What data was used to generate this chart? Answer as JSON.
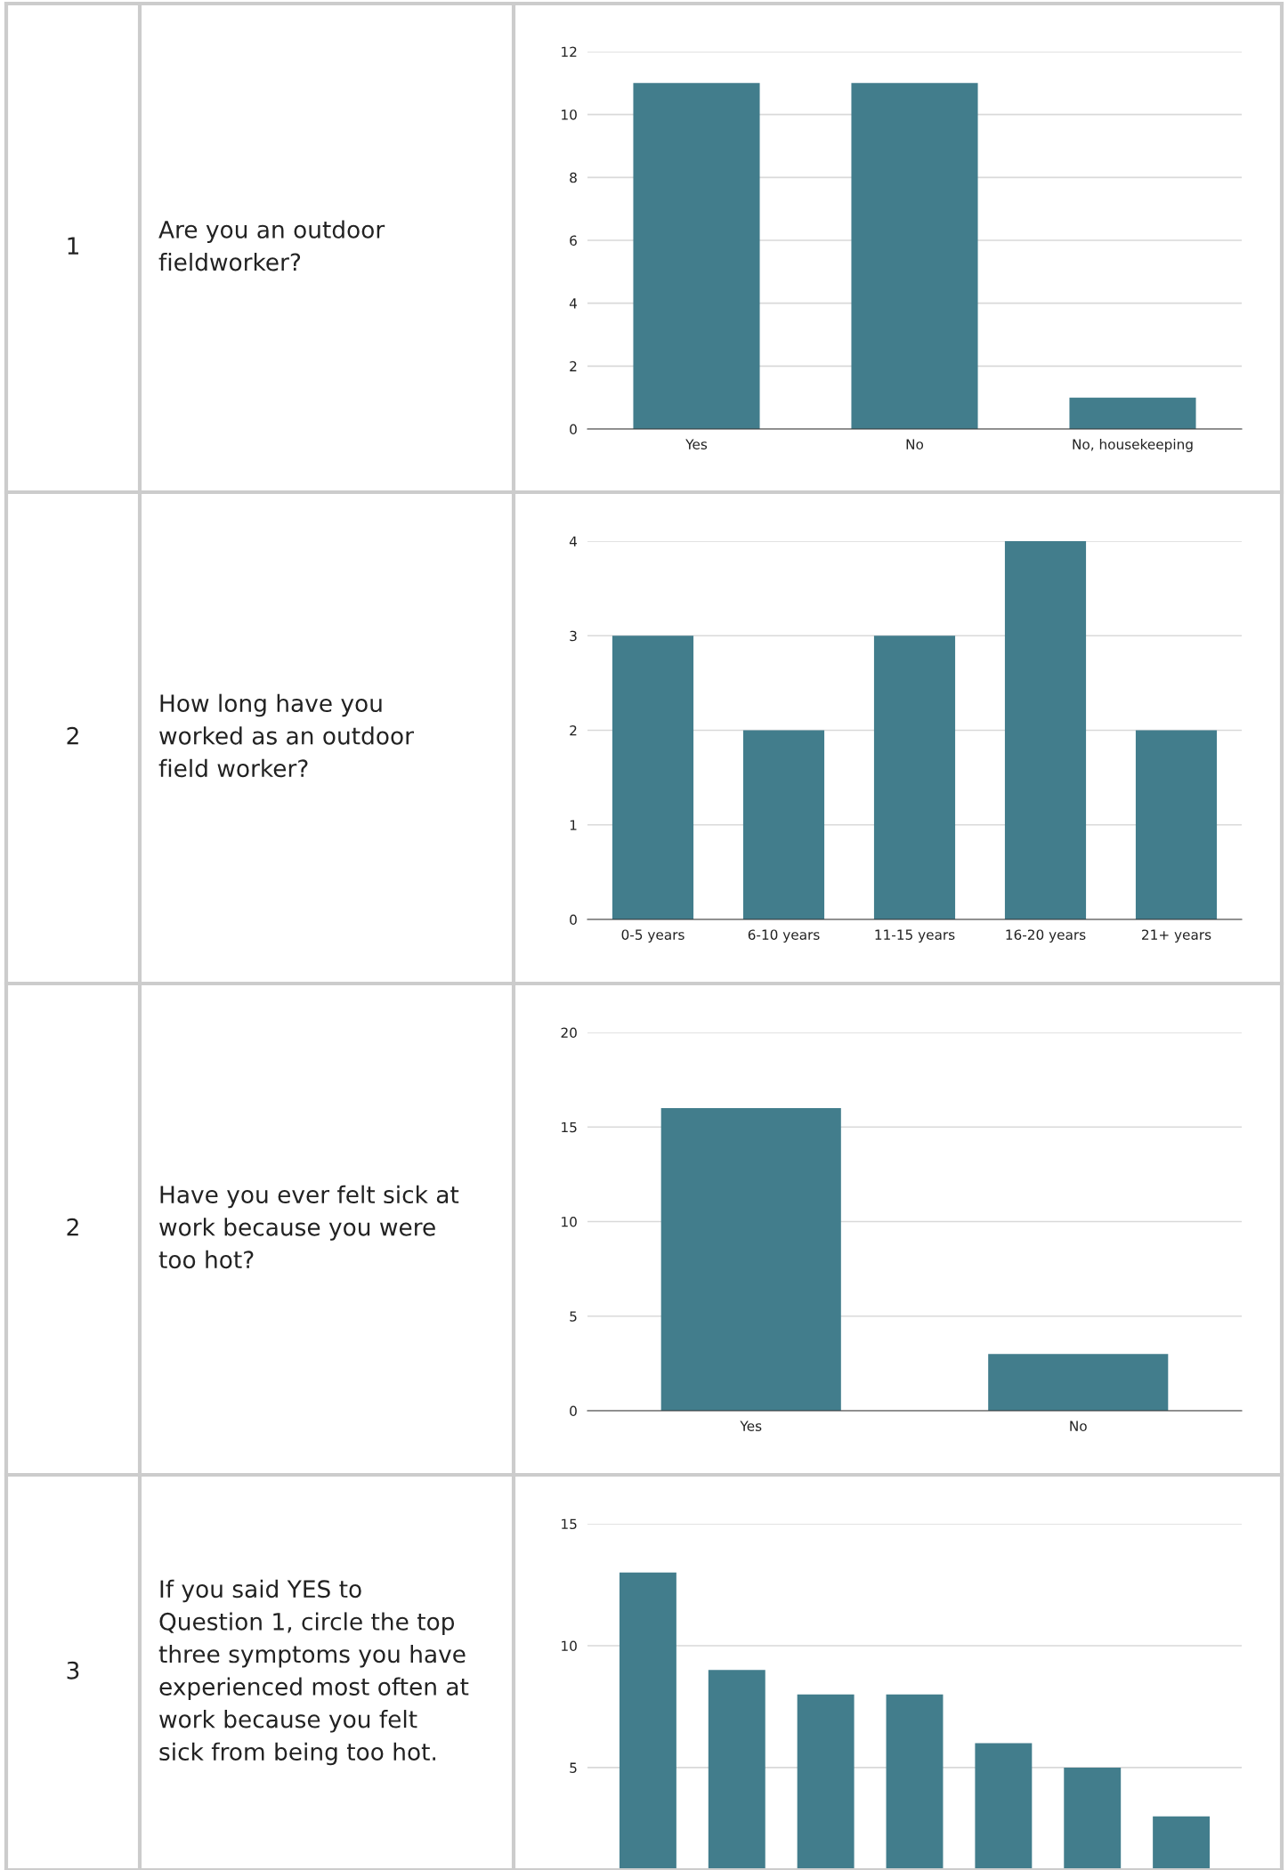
{
  "chart_data": [
    {
      "type": "bar",
      "categories": [
        "Yes",
        "No",
        "No, housekeeping"
      ],
      "values": [
        11,
        11,
        1
      ],
      "color": "#427d8c",
      "ylim": [
        0,
        12
      ],
      "yticks": [
        0,
        2,
        4,
        6,
        8,
        10,
        12
      ],
      "grid": "y",
      "annotations": [
        "1",
        "Are you an outdoor\nfieldworker?"
      ]
    },
    {
      "type": "bar",
      "categories": [
        "0-5 years",
        "6-10 years",
        "11-15 years",
        "16-20 years",
        "21+ years"
      ],
      "values": [
        3,
        2,
        3,
        4,
        2
      ],
      "color": "#427d8c",
      "ylim": [
        0,
        4
      ],
      "yticks": [
        0,
        1,
        2,
        3,
        4
      ],
      "grid": "y",
      "annotations": [
        "2",
        "How long have you\nworked as an outdoor\nfield worker?"
      ]
    },
    {
      "type": "bar",
      "categories": [
        "Yes",
        "No"
      ],
      "values": [
        16,
        3
      ],
      "color": "#427d8c",
      "ylim": [
        0,
        20
      ],
      "yticks": [
        0,
        5,
        10,
        15,
        20
      ],
      "grid": "y",
      "annotations": [
        "2",
        "Have you ever felt sick at\nwork because you were\ntoo hot?"
      ]
    },
    {
      "type": "bar",
      "categories": [
        null,
        null,
        null,
        null,
        null,
        null,
        null
      ],
      "values": [
        13,
        9,
        8,
        8,
        6,
        5,
        3
      ],
      "color": "#427d8c",
      "ylim": [
        0.8,
        15
      ],
      "yticks": [
        5,
        10,
        15
      ],
      "grid": "y",
      "annotations": [
        "3",
        "If you said YES to\nQuestion 1, circle the top\nthree symptoms you have\nexperienced most often at\nwork because you felt\nsick from being too hot."
      ]
    }
  ]
}
